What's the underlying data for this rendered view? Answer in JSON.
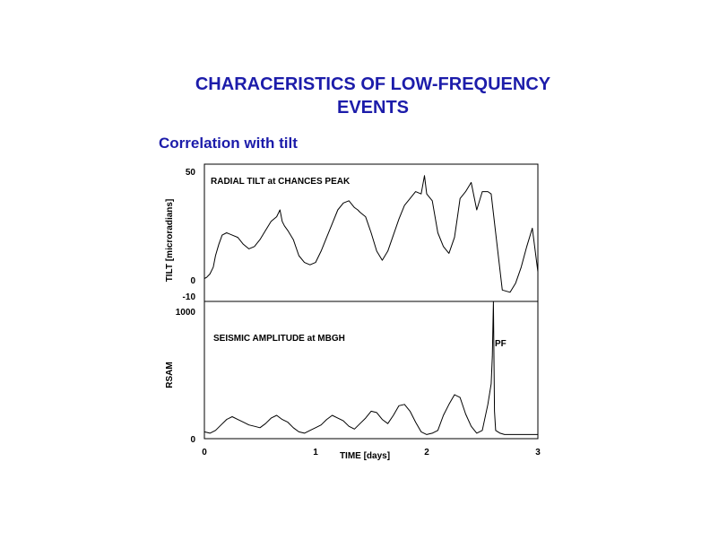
{
  "title_line1": "CHARACERISTICS OF LOW-FREQUENCY",
  "title_line2": "EVENTS",
  "subtitle": "Correlation with tilt",
  "colors": {
    "title": "#1c1caa",
    "line": "#000000"
  },
  "chart_data": [
    {
      "type": "line",
      "title": "RADIAL TILT at CHANCES PEAK",
      "ylabel": "TILT [microradians]",
      "xlim": [
        0,
        3
      ],
      "ylim": [
        -10,
        50
      ],
      "yticks": [
        "50",
        "0",
        "-10"
      ],
      "series": [
        {
          "x": [
            0,
            0.02,
            0.05,
            0.08,
            0.1,
            0.13,
            0.16,
            0.2,
            0.25,
            0.3,
            0.35,
            0.4,
            0.45,
            0.5,
            0.55,
            0.6,
            0.65,
            0.68,
            0.7,
            0.72,
            0.75,
            0.8,
            0.85,
            0.9,
            0.95,
            1.0,
            1.05,
            1.1,
            1.15,
            1.2,
            1.25,
            1.3,
            1.35,
            1.38,
            1.4,
            1.45,
            1.5,
            1.55,
            1.6,
            1.65,
            1.7,
            1.75,
            1.8,
            1.85,
            1.9,
            1.95,
            1.98,
            2.0,
            2.05,
            2.1,
            2.15,
            2.2,
            2.25,
            2.28,
            2.3,
            2.35,
            2.4,
            2.45,
            2.5,
            2.55,
            2.58,
            2.62,
            2.68,
            2.75,
            2.8,
            2.85,
            2.9,
            2.95,
            3.0
          ],
          "y": [
            0,
            0.5,
            2,
            5,
            10,
            15,
            19,
            20,
            19,
            18,
            15,
            13,
            14,
            17,
            21,
            25,
            27,
            30,
            25,
            23,
            21,
            17,
            10,
            7,
            6,
            7,
            12,
            18,
            24,
            30,
            33,
            34,
            31,
            30,
            29,
            27,
            20,
            12,
            8,
            12,
            19,
            26,
            32,
            35,
            38,
            37,
            45,
            37,
            34,
            20,
            14,
            11,
            18,
            28,
            35,
            38,
            42,
            30,
            38,
            38,
            37,
            20,
            -5,
            -6,
            -2,
            5,
            14,
            22,
            3
          ]
        }
      ]
    },
    {
      "type": "line",
      "title": "SEISMIC AMPLITUDE at  MBGH",
      "ylabel": "RSAM",
      "xlabel": "TIME [days]",
      "annotation": "PF",
      "xlim": [
        0,
        3
      ],
      "ylim": [
        0,
        1000
      ],
      "xticks": [
        "0",
        "1",
        "2",
        "3"
      ],
      "yticks": [
        "1000",
        "0"
      ],
      "series": [
        {
          "x": [
            0,
            0.05,
            0.1,
            0.15,
            0.2,
            0.25,
            0.3,
            0.35,
            0.4,
            0.45,
            0.5,
            0.55,
            0.6,
            0.65,
            0.7,
            0.75,
            0.8,
            0.85,
            0.9,
            0.95,
            1.0,
            1.05,
            1.1,
            1.15,
            1.2,
            1.25,
            1.3,
            1.35,
            1.4,
            1.45,
            1.5,
            1.55,
            1.6,
            1.65,
            1.7,
            1.75,
            1.8,
            1.85,
            1.9,
            1.95,
            2.0,
            2.05,
            2.1,
            2.15,
            2.2,
            2.25,
            2.3,
            2.35,
            2.4,
            2.45,
            2.5,
            2.55,
            2.58,
            2.59,
            2.6,
            2.61,
            2.62,
            2.66,
            2.7,
            2.8,
            2.9,
            3.0
          ],
          "y": [
            50,
            40,
            60,
            100,
            140,
            160,
            140,
            120,
            100,
            90,
            80,
            110,
            150,
            170,
            140,
            120,
            80,
            50,
            40,
            60,
            80,
            100,
            140,
            170,
            150,
            130,
            90,
            70,
            110,
            150,
            200,
            190,
            140,
            110,
            170,
            240,
            250,
            200,
            120,
            50,
            30,
            40,
            60,
            170,
            250,
            320,
            300,
            180,
            90,
            40,
            60,
            250,
            400,
            600,
            1000,
            200,
            60,
            40,
            30,
            30,
            30,
            30
          ]
        }
      ]
    }
  ]
}
